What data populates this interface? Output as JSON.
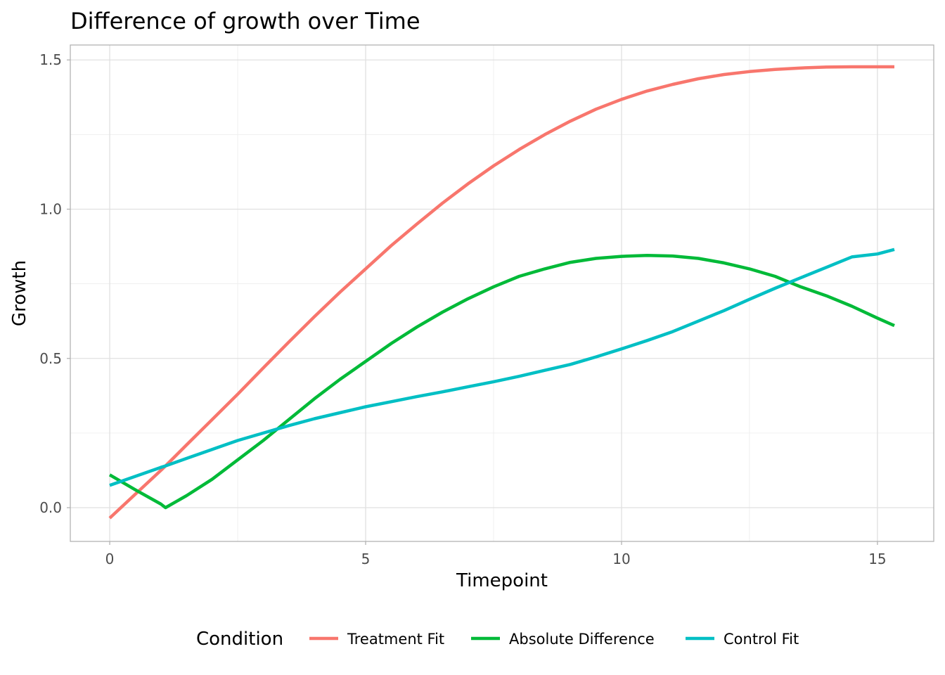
{
  "chart_data": {
    "type": "line",
    "title": "Difference of growth over Time",
    "xlabel": "Timepoint",
    "ylabel": "Growth",
    "xlim": [
      -0.77,
      16.1
    ],
    "ylim": [
      -0.113,
      1.55
    ],
    "x_ticks": [
      0,
      5,
      10,
      15
    ],
    "x_tick_labels": [
      "0",
      "5",
      "10",
      "15"
    ],
    "y_ticks": [
      0.0,
      0.5,
      1.0,
      1.5
    ],
    "y_tick_labels": [
      "0.0",
      "0.5",
      "1.0",
      "1.5"
    ],
    "x_minor_ticks": [
      2.5,
      7.5,
      12.5
    ],
    "y_minor_ticks": [
      0.25,
      0.75,
      1.25
    ],
    "grid": true,
    "legend": {
      "title": "Condition",
      "position": "bottom"
    },
    "x": [
      0,
      0.5,
      1,
      1.09,
      1.5,
      2,
      2.5,
      3,
      3.5,
      4,
      4.5,
      5,
      5.5,
      6,
      6.5,
      7,
      7.5,
      8,
      8.5,
      9,
      9.5,
      10,
      10.5,
      11,
      11.5,
      12,
      12.5,
      13,
      13.5,
      14,
      14.5,
      15,
      15.33
    ],
    "series": [
      {
        "name": "Treatment Fit",
        "color": "#F8766D",
        "values": [
          -0.035,
          0.045,
          0.125,
          0.14,
          0.21,
          0.295,
          0.38,
          0.468,
          0.555,
          0.64,
          0.722,
          0.8,
          0.878,
          0.95,
          1.02,
          1.085,
          1.145,
          1.2,
          1.25,
          1.295,
          1.335,
          1.368,
          1.396,
          1.418,
          1.437,
          1.451,
          1.461,
          1.468,
          1.473,
          1.476,
          1.477,
          1.477,
          1.477
        ]
      },
      {
        "name": "Absolute Difference",
        "color": "#00BA38",
        "values": [
          0.11,
          0.06,
          0.012,
          0.0,
          0.04,
          0.095,
          0.16,
          0.225,
          0.295,
          0.365,
          0.43,
          0.49,
          0.55,
          0.605,
          0.655,
          0.7,
          0.74,
          0.775,
          0.8,
          0.822,
          0.835,
          0.842,
          0.845,
          0.843,
          0.835,
          0.82,
          0.8,
          0.775,
          0.74,
          0.71,
          0.675,
          0.635,
          0.61
        ]
      },
      {
        "name": "Control Fit",
        "color": "#00BFC4",
        "values": [
          0.075,
          0.105,
          0.135,
          0.14,
          0.165,
          0.195,
          0.225,
          0.25,
          0.275,
          0.298,
          0.318,
          0.338,
          0.355,
          0.372,
          0.388,
          0.405,
          0.422,
          0.44,
          0.46,
          0.48,
          0.505,
          0.532,
          0.56,
          0.59,
          0.625,
          0.66,
          0.698,
          0.735,
          0.77,
          0.805,
          0.84,
          0.85,
          0.865
        ]
      }
    ]
  }
}
